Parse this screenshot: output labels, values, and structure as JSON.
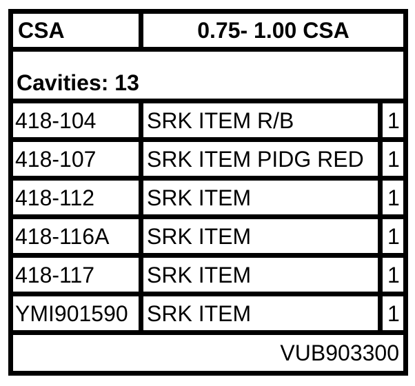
{
  "header": {
    "left": "CSA",
    "right": "0.75- 1.00 CSA"
  },
  "cavities_label": "Cavities: 13",
  "rows": [
    {
      "part": "418-104",
      "desc": "SRK ITEM R/B",
      "qty": "1"
    },
    {
      "part": "418-107",
      "desc": "SRK ITEM PIDG RED",
      "qty": "1"
    },
    {
      "part": "418-112",
      "desc": "SRK ITEM",
      "qty": "1"
    },
    {
      "part": "418-116A",
      "desc": "SRK ITEM",
      "qty": "1"
    },
    {
      "part": "418-117",
      "desc": "SRK ITEM",
      "qty": "1"
    },
    {
      "part": "YMI901590",
      "desc": "SRK ITEM",
      "qty": "1"
    }
  ],
  "footer": "VUB903300"
}
